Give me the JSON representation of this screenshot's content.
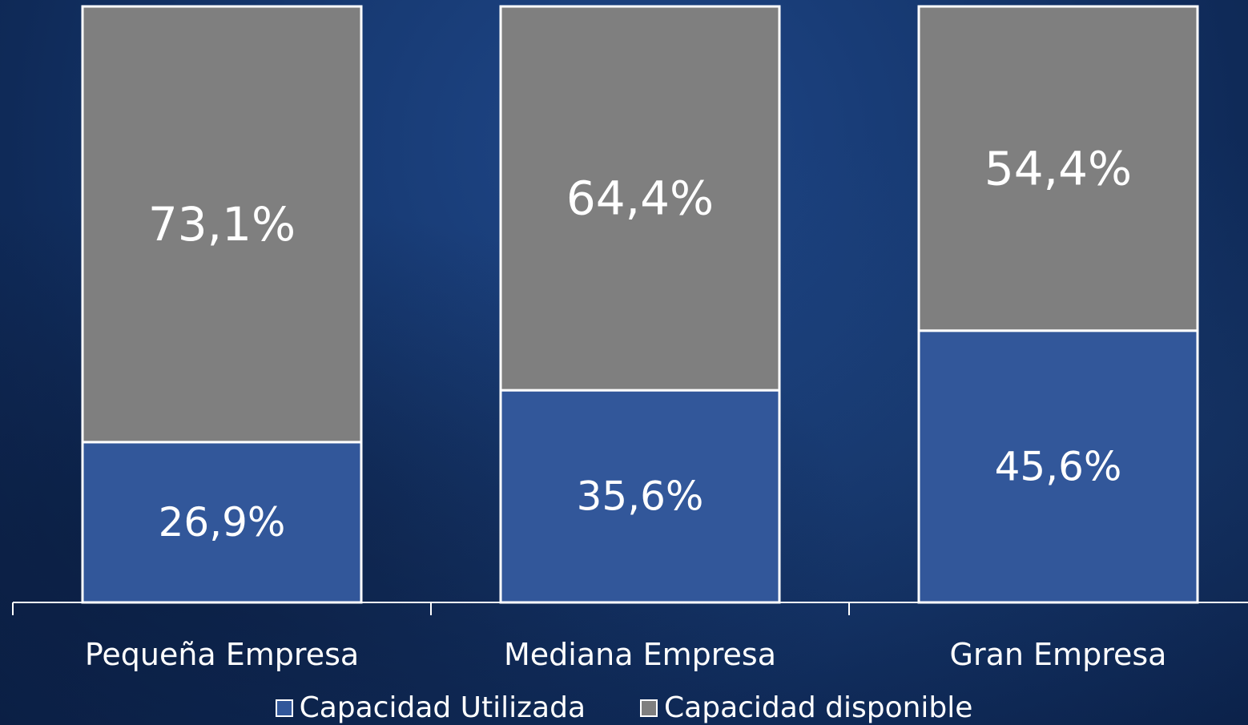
{
  "chart_data": {
    "type": "bar",
    "stacked": true,
    "categories": [
      "Pequeña Empresa",
      "Mediana Empresa",
      "Gran Empresa"
    ],
    "series": [
      {
        "name": "Capacidad Utilizada",
        "values": [
          26.9,
          35.6,
          45.6
        ],
        "labels": [
          "26,9%",
          "35,6%",
          "45,6%"
        ],
        "color": "#32579a"
      },
      {
        "name": "Capacidad disponible",
        "values": [
          73.1,
          64.4,
          54.4
        ],
        "labels": [
          "73,1%",
          "64,4%",
          "54,4%"
        ],
        "color": "#7f7f7f"
      }
    ],
    "ylim": [
      0,
      100
    ],
    "grid": false,
    "legend_position": "bottom",
    "bar_border_color": "#ffffff",
    "text_color": "#ffffff"
  },
  "legend": {
    "items": [
      {
        "label": "Capacidad Utilizada",
        "color": "#32579a"
      },
      {
        "label": "Capacidad disponible",
        "color": "#7f7f7f"
      }
    ]
  }
}
